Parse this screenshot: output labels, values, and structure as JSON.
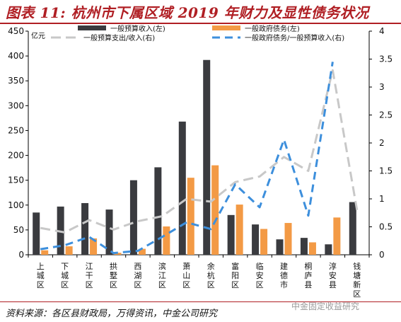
{
  "title": "图表 11: 杭州市下属区域 2019 年财力及显性债务状况",
  "source": "资料来源：各区县财政局，万得资讯，中金公司研究",
  "watermark": "中金固定收益研究",
  "colors": {
    "title": "#b01f24",
    "revenue_bar": "#3a3b3f",
    "debt_bar": "#f39a45",
    "expenditure_ratio_line": "#c8c8c8",
    "debt_ratio_line": "#3d8fdc"
  },
  "chart_data": {
    "type": "bar",
    "unit_label": "亿元",
    "categories": [
      "上城区",
      "下城区",
      "江干区",
      "拱墅区",
      "西湖区",
      "滨江区",
      "萧山区",
      "余杭区",
      "富阳区",
      "临安区",
      "建德市",
      "桐庐县",
      "淳安县",
      "钱塘新区"
    ],
    "left_axis": {
      "min": 0,
      "max": 450,
      "ticks": [
        0,
        50,
        100,
        150,
        200,
        250,
        300,
        350,
        400,
        450
      ]
    },
    "right_axis": {
      "min": 0,
      "max": 4,
      "ticks": [
        "0",
        "0.5",
        "1",
        "1.5",
        "2",
        "2.5",
        "3",
        "3.5",
        "4"
      ]
    },
    "grid": false,
    "legend_position": "top",
    "series": [
      {
        "name": "一般预算收入(左)",
        "kind": "bar",
        "axis": "left",
        "color_key": "revenue_bar",
        "values": [
          85,
          97,
          104,
          91,
          150,
          176,
          268,
          392,
          80,
          61,
          31,
          34,
          21,
          106
        ]
      },
      {
        "name": "一般政府债务(左)",
        "kind": "bar",
        "axis": "left",
        "color_key": "debt_bar",
        "values": [
          9,
          17,
          33,
          4,
          12,
          57,
          155,
          180,
          101,
          52,
          64,
          25,
          75,
          null
        ]
      },
      {
        "name": "一般预算支出/收入(右)",
        "kind": "line",
        "axis": "right",
        "dash": "long",
        "color_key": "expenditure_ratio_line",
        "values": [
          0.48,
          0.4,
          0.62,
          0.45,
          0.6,
          0.69,
          1.0,
          0.95,
          1.3,
          1.4,
          1.75,
          1.5,
          3.3,
          0.8
        ]
      },
      {
        "name": "一般政府债务/一般预算收入(右)",
        "kind": "line",
        "axis": "right",
        "dash": "medium",
        "color_key": "debt_ratio_line",
        "values": [
          0.1,
          0.17,
          0.32,
          0.03,
          0.07,
          0.32,
          0.58,
          0.46,
          1.26,
          0.85,
          2.06,
          0.7,
          3.45,
          null
        ]
      }
    ]
  }
}
